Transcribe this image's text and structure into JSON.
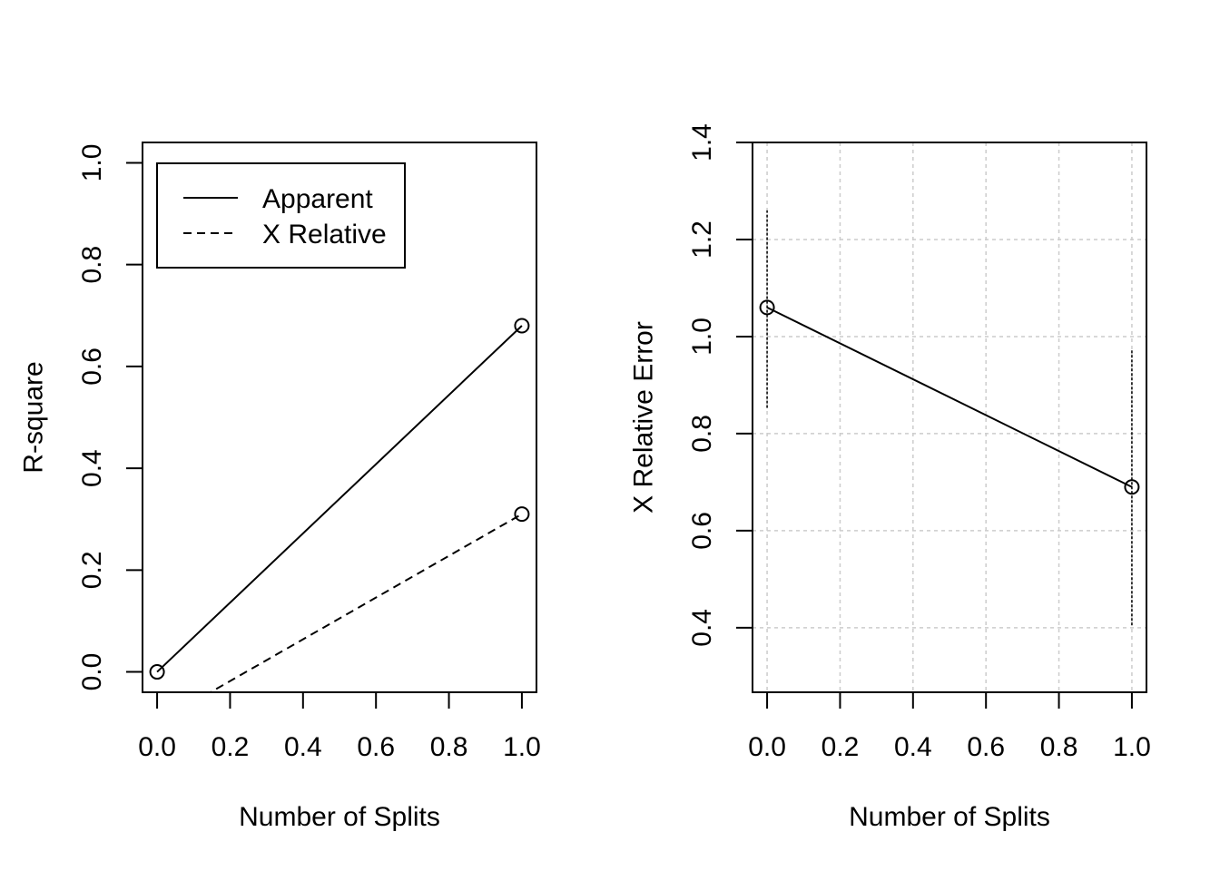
{
  "chart_data": [
    {
      "type": "line",
      "xlabel": "Number of Splits",
      "ylabel": "R-square",
      "xlim": [
        -0.04,
        1.04
      ],
      "ylim": [
        -0.04,
        1.04
      ],
      "xticks": [
        "0.0",
        "0.2",
        "0.4",
        "0.6",
        "0.8",
        "1.0"
      ],
      "yticks": [
        "0.0",
        "0.2",
        "0.4",
        "0.6",
        "0.8",
        "1.0"
      ],
      "legend_position": "top-left",
      "grid": false,
      "series": [
        {
          "name": "Apparent",
          "style": "solid",
          "x": [
            0,
            1
          ],
          "y": [
            0.0,
            0.68
          ]
        },
        {
          "name": "X Relative",
          "style": "dashed",
          "x": [
            0,
            1
          ],
          "y": [
            -0.1,
            0.31
          ]
        }
      ]
    },
    {
      "type": "line",
      "xlabel": "Number of Splits",
      "ylabel": "X Relative Error",
      "xlim": [
        -0.04,
        1.04
      ],
      "ylim": [
        0.267,
        1.4
      ],
      "xticks": [
        "0.0",
        "0.2",
        "0.4",
        "0.6",
        "0.8",
        "1.0"
      ],
      "yticks": [
        "0.4",
        "0.6",
        "0.8",
        "1.0",
        "1.2",
        "1.4"
      ],
      "grid": true,
      "series": [
        {
          "x": [
            0,
            1
          ],
          "y": [
            1.06,
            0.69
          ],
          "error_low": [
            0.853,
            0.405
          ],
          "error_high": [
            1.26,
            0.972
          ]
        }
      ]
    }
  ]
}
